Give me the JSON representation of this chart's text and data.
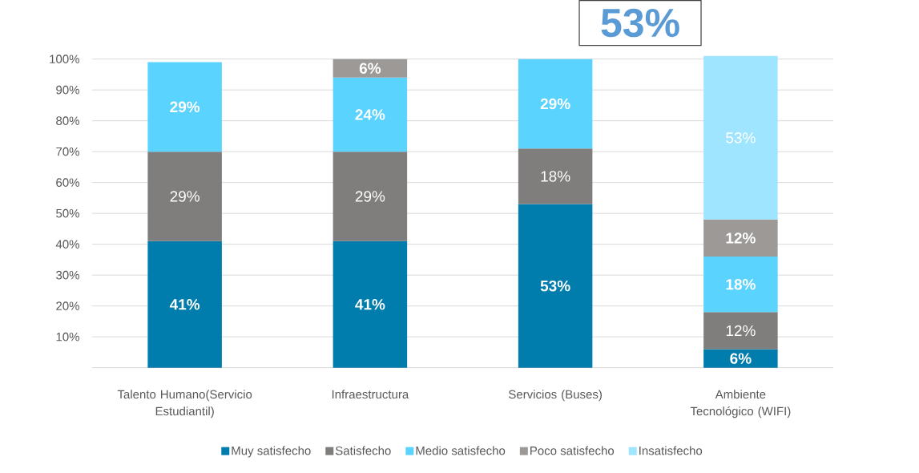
{
  "chart_data": {
    "type": "bar",
    "stacked": true,
    "categories": [
      "Talento Humano(Servicio Estudiantil)",
      "Infraestructura",
      "Servicios (Buses)",
      "Ambiente Tecnológico (WIFI)"
    ],
    "series": [
      {
        "name": "Muy satisfecho",
        "color": "#007DAD",
        "values": [
          41,
          41,
          53,
          6
        ],
        "value_labels": [
          "41%",
          "41%",
          "53%",
          "6%"
        ]
      },
      {
        "name": "Satisfecho",
        "color": "#807E7C",
        "values": [
          29,
          29,
          18,
          12
        ],
        "value_labels": [
          "29%",
          "29%",
          "18%",
          "12%"
        ]
      },
      {
        "name": "Medio satisfecho",
        "color": "#5BD3FF",
        "values": [
          29,
          24,
          29,
          18
        ],
        "value_labels": [
          "29%",
          "24%",
          "29%",
          "18%"
        ]
      },
      {
        "name": "Poco satisfecho",
        "color": "#9D9997",
        "values": [
          null,
          6,
          null,
          12
        ],
        "value_labels": [
          null,
          "6%",
          null,
          "12%"
        ]
      },
      {
        "name": "Insatisfecho",
        "color": "#A0E5FF",
        "values": [
          null,
          null,
          null,
          53
        ],
        "value_labels": [
          null,
          null,
          null,
          "53%"
        ]
      }
    ],
    "ylim": [
      0,
      101
    ],
    "yticks": [
      {
        "value": 0,
        "label": null
      },
      {
        "value": 10,
        "label": "10%"
      },
      {
        "value": 20,
        "label": "20%"
      },
      {
        "value": 30,
        "label": "30%"
      },
      {
        "value": 40,
        "label": "40%"
      },
      {
        "value": 50,
        "label": "50%"
      },
      {
        "value": 60,
        "label": "60%"
      },
      {
        "value": 70,
        "label": "70%"
      },
      {
        "value": 80,
        "label": "80%"
      },
      {
        "value": 90,
        "label": "90%"
      },
      {
        "value": 100,
        "label": "100%"
      }
    ],
    "grid": "y",
    "legend": "bottom",
    "annotations": [
      "53%"
    ]
  }
}
